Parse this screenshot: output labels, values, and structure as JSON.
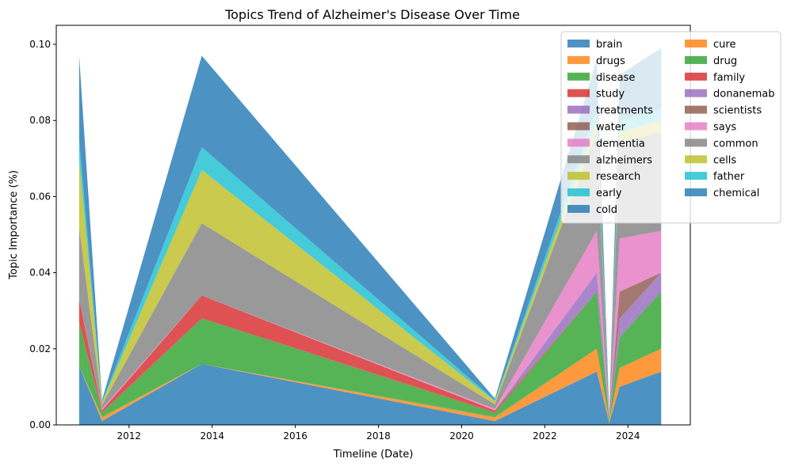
{
  "chart_data": {
    "type": "area",
    "stacked": true,
    "title": "Topics Trend of Alzheimer's Disease Over Time",
    "xlabel": "Timeline (Date)",
    "ylabel": "Topic Importance (%)",
    "xlim": [
      2010.25,
      2025.5
    ],
    "ylim": [
      0,
      0.105
    ],
    "x_ticks": [
      2012,
      2014,
      2016,
      2018,
      2020,
      2022,
      2024
    ],
    "x_tick_labels": [
      "2012",
      "2014",
      "2016",
      "2018",
      "2020",
      "2022",
      "2024"
    ],
    "y_ticks": [
      0.0,
      0.02,
      0.04,
      0.06,
      0.08,
      0.1
    ],
    "y_tick_labels": [
      "0.00",
      "0.02",
      "0.04",
      "0.06",
      "0.08",
      "0.10"
    ],
    "legend_position": "top-right",
    "legend_columns": 2,
    "grid": false,
    "x": [
      2010.8,
      2011.35,
      2013.75,
      2020.8,
      2023.25,
      2023.55,
      2023.8,
      2024.8
    ],
    "series": [
      {
        "name": "brain",
        "color": "#1f77b4",
        "values": [
          0.0155,
          0.001,
          0.016,
          0.001,
          0.014,
          0.0005,
          0.01,
          0.014
        ]
      },
      {
        "name": "cure",
        "color": "#ff7f0e",
        "values": [
          0.0,
          0.0005,
          0.0,
          0.0005,
          0.0,
          0.0,
          0.0,
          0.0
        ]
      },
      {
        "name": "drugs",
        "color": "#ff7f0e",
        "values": [
          0.0,
          0.0005,
          0.0,
          0.0005,
          0.006,
          0.0005,
          0.005,
          0.006
        ]
      },
      {
        "name": "drug",
        "color": "#2ca02c",
        "values": [
          0.0,
          0.0002,
          0.0,
          0.0002,
          0.0,
          0.0,
          0.0,
          0.0
        ]
      },
      {
        "name": "disease",
        "color": "#2ca02c",
        "values": [
          0.0115,
          0.001,
          0.012,
          0.001,
          0.015,
          0.0005,
          0.008,
          0.015
        ]
      },
      {
        "name": "family",
        "color": "#d62728",
        "values": [
          0.0,
          0.0002,
          0.0,
          0.0002,
          0.0,
          0.0,
          0.0,
          0.0
        ]
      },
      {
        "name": "study",
        "color": "#d62728",
        "values": [
          0.006,
          0.0004,
          0.006,
          0.0004,
          0.0,
          0.0,
          0.0,
          0.0
        ]
      },
      {
        "name": "donanemab",
        "color": "#9467bd",
        "values": [
          0.0,
          0.0,
          0.0,
          0.0,
          0.0,
          0.0,
          0.0,
          0.005
        ]
      },
      {
        "name": "treatments",
        "color": "#9467bd",
        "values": [
          0.0,
          0.0,
          0.0,
          0.0,
          0.005,
          0.0003,
          0.005,
          0.0
        ]
      },
      {
        "name": "scientists",
        "color": "#8c564b",
        "values": [
          0.0,
          0.0,
          0.0,
          0.0,
          0.0,
          0.0,
          0.007,
          0.0
        ]
      },
      {
        "name": "water",
        "color": "#8c564b",
        "values": [
          0.0,
          0.0,
          0.0,
          0.0,
          0.0,
          0.0,
          0.0,
          0.0
        ]
      },
      {
        "name": "says",
        "color": "#e377c2",
        "values": [
          0.0,
          0.0002,
          0.0,
          0.0002,
          0.0,
          0.0,
          0.014,
          0.011
        ]
      },
      {
        "name": "dementia",
        "color": "#e377c2",
        "values": [
          0.0,
          0.0002,
          0.0,
          0.0002,
          0.011,
          0.0002,
          0.0,
          0.0
        ]
      },
      {
        "name": "common",
        "color": "#7f7f7f",
        "values": [
          0.0,
          0.0,
          0.0,
          0.0,
          0.0,
          0.0,
          0.0,
          0.0
        ]
      },
      {
        "name": "alzheimers",
        "color": "#7f7f7f",
        "values": [
          0.019,
          0.001,
          0.019,
          0.0012,
          0.026,
          0.0008,
          0.025,
          0.026
        ]
      },
      {
        "name": "cells",
        "color": "#bcbd22",
        "values": [
          0.0,
          0.0,
          0.0,
          0.0,
          0.0,
          0.0,
          0.0,
          0.0
        ]
      },
      {
        "name": "research",
        "color": "#bcbd22",
        "values": [
          0.018,
          0.0006,
          0.014,
          0.0008,
          0.003,
          0.0002,
          0.003,
          0.003
        ]
      },
      {
        "name": "father",
        "color": "#17becf",
        "values": [
          0.0,
          0.0,
          0.0,
          0.0,
          0.0,
          0.0,
          0.0,
          0.0
        ]
      },
      {
        "name": "early",
        "color": "#17becf",
        "values": [
          0.005,
          0.0003,
          0.006,
          0.0003,
          0.003,
          0.0002,
          0.003,
          0.003
        ]
      },
      {
        "name": "chemical",
        "color": "#1f77b4",
        "values": [
          0.0,
          0.0,
          0.0,
          0.0,
          0.0,
          0.0,
          0.0,
          0.0
        ]
      },
      {
        "name": "cold",
        "color": "#1f77b4",
        "values": [
          0.022,
          0.0004,
          0.024,
          0.0004,
          0.013,
          0.0003,
          0.012,
          0.016
        ]
      }
    ]
  }
}
